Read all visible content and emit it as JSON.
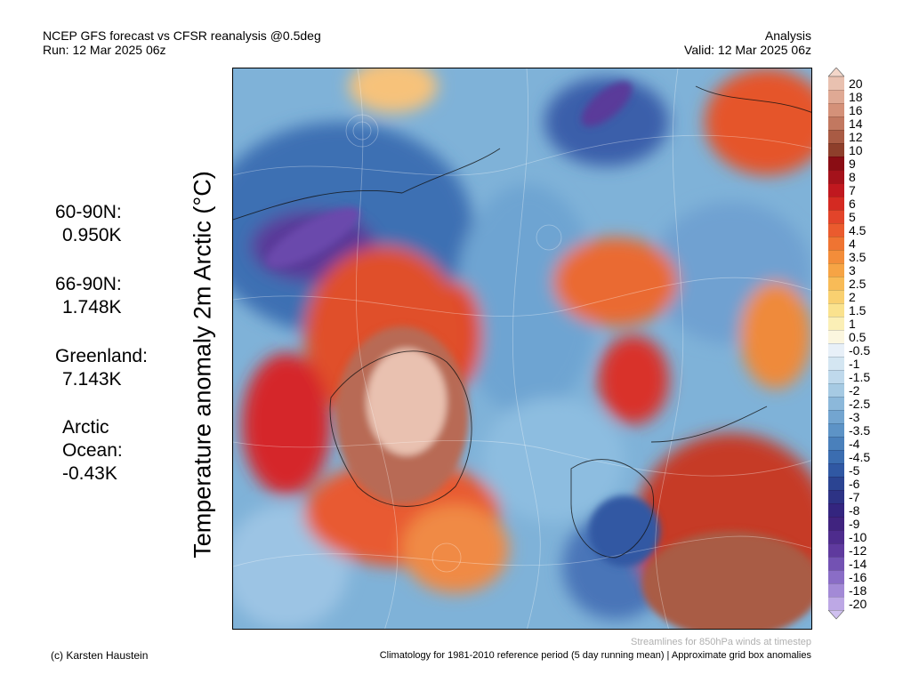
{
  "header": {
    "title_left": "NCEP GFS forecast vs CFSR reanalysis @0.5deg",
    "run": "Run: 12 Mar 2025 06z",
    "title_right": "Analysis",
    "valid": "Valid: 12 Mar 2025 06z"
  },
  "vertical_title": "Temperature anomaly 2m Arctic (°C)",
  "stats": [
    {
      "region": "60-90N:",
      "value": "0.950K"
    },
    {
      "region": "66-90N:",
      "value": "1.748K"
    },
    {
      "region": "Greenland:",
      "value": "7.143K"
    },
    {
      "region": "Arctic",
      "region2": "Ocean:",
      "value": "-0.43K"
    }
  ],
  "colorbar": {
    "labels": [
      "20",
      "18",
      "16",
      "14",
      "12",
      "10",
      "9",
      "8",
      "7",
      "6",
      "5",
      "4.5",
      "4",
      "3.5",
      "3",
      "2.5",
      "2",
      "1.5",
      "1",
      "0.5",
      "-0.5",
      "-1",
      "-1.5",
      "-2",
      "-2.5",
      "-3",
      "-3.5",
      "-4",
      "-4.5",
      "-5",
      "-6",
      "-7",
      "-8",
      "-9",
      "-10",
      "-12",
      "-14",
      "-16",
      "-18",
      "-20"
    ],
    "colors": [
      "#e9c1b0",
      "#dfa994",
      "#d49179",
      "#c27860",
      "#a95b44",
      "#8e3f2b",
      "#8a0d14",
      "#a4121b",
      "#c0181f",
      "#d42a22",
      "#e2442a",
      "#ea5b2e",
      "#ef7432",
      "#f38d3a",
      "#f6a445",
      "#f8bb57",
      "#f9d070",
      "#fae28e",
      "#fbefb6",
      "#fbf6df",
      "#e8f0f8",
      "#d4e6f2",
      "#bfd9ec",
      "#a6cae3",
      "#8cb8da",
      "#73a5d0",
      "#5d93c6",
      "#4a80bb",
      "#3b6db0",
      "#3058a3",
      "#2b4492",
      "#2d3385",
      "#34257f",
      "#40237f",
      "#4e2c8d",
      "#5f3a9e",
      "#7352b3",
      "#8a6dc6",
      "#a38ad6",
      "#bda8e5"
    ]
  },
  "footer": {
    "credit": "(c) Karsten Haustein",
    "streamlines_note": "Streamlines for 850hPa winds at timestep",
    "climatology": "Climatology for 1981-2010 reference period (5 day running mean) | Approximate grid box anomalies"
  }
}
